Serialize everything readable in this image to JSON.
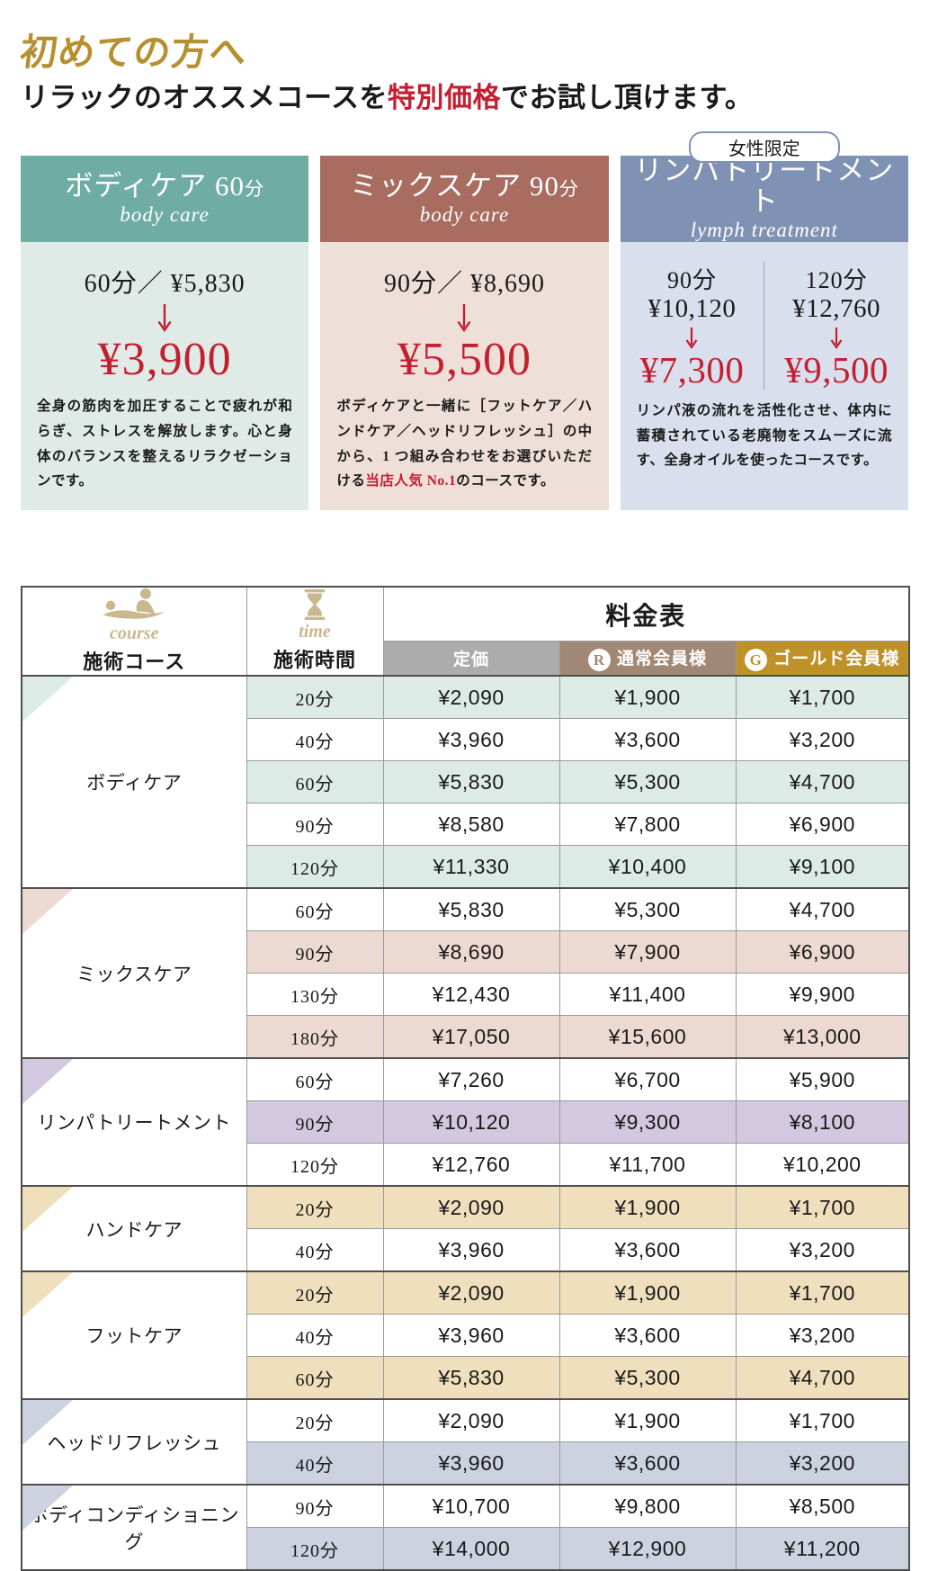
{
  "header": {
    "title": "初めての方へ",
    "subtitle": {
      "pre": "リラックのオススメコースを",
      "highlight": "特別価格",
      "post": "でお試し頂けます。"
    }
  },
  "colors": {
    "accent_red": "#c41f30",
    "title_gold": "#b6902e",
    "icon_tan": "#c9b78f"
  },
  "cards": [
    {
      "title": "ボディケア 60",
      "title_unit": "分",
      "subtitle_en": "body care",
      "orig_line": "60分／ ¥5,830",
      "price": "¥3,900",
      "desc": [
        {
          "text": "全身の筋肉を加圧することで疲れが和らぎ、ストレスを解放します。心と身体のバランスを整えるリラクゼーションです。",
          "red": false
        }
      ],
      "header_bg": "#6fada4",
      "body_bg": "#e0ebe8"
    },
    {
      "title": "ミックスケア 90",
      "title_unit": "分",
      "subtitle_en": "body care",
      "orig_line": "90分／ ¥8,690",
      "price": "¥5,500",
      "desc": [
        {
          "text": "ボディケアと一緒に［フットケア／ハンドケア／ヘッドリフレッシュ］の中から、1 つ組み合わせをお選びいただける",
          "red": false
        },
        {
          "text": "当店人気 No.1",
          "red": true
        },
        {
          "text": "のコースです。",
          "red": false
        }
      ],
      "header_bg": "#a86c60",
      "body_bg": "#eedfd8"
    },
    {
      "badge": "女性限定",
      "title": "リンパトリートメント",
      "title_unit": "",
      "subtitle_en": "lymph treatment",
      "offers": [
        {
          "duration": "90分",
          "orig": "¥10,120",
          "price": "¥7,300"
        },
        {
          "duration": "120分",
          "orig": "¥12,760",
          "price": "¥9,500"
        }
      ],
      "desc": [
        {
          "text": "リンパ液の流れを活性化させ、体内に蓄積されている老廃物をスムーズに流す、全身オイルを使ったコースです。",
          "red": false
        }
      ],
      "header_bg": "#8092b3",
      "body_bg": "#d9dfec"
    }
  ],
  "table": {
    "title": "料金表",
    "course_header": {
      "icon": "massage-icon",
      "caption": "course",
      "label": "施術コース"
    },
    "time_header": {
      "icon": "hourglass-icon",
      "caption": "time",
      "label": "施術時間"
    },
    "price_columns": [
      {
        "label": "定価",
        "bg": "#acacac",
        "logo": ""
      },
      {
        "label": "通常会員様",
        "bg": "#a18875",
        "logo": "R"
      },
      {
        "label": "ゴールド会員様",
        "bg": "#bf9129",
        "logo": "G"
      }
    ],
    "groups": [
      {
        "course": "ボディケア",
        "theme": "#dcebe6",
        "rows": [
          {
            "time": "20分",
            "prices": [
              "¥2,090",
              "¥1,900",
              "¥1,700"
            ]
          },
          {
            "time": "40分",
            "prices": [
              "¥3,960",
              "¥3,600",
              "¥3,200"
            ]
          },
          {
            "time": "60分",
            "prices": [
              "¥5,830",
              "¥5,300",
              "¥4,700"
            ]
          },
          {
            "time": "90分",
            "prices": [
              "¥8,580",
              "¥7,800",
              "¥6,900"
            ]
          },
          {
            "time": "120分",
            "prices": [
              "¥11,330",
              "¥10,400",
              "¥9,100"
            ]
          }
        ]
      },
      {
        "course": "ミックスケア",
        "theme": "#ecd9d1",
        "rows": [
          {
            "time": "60分",
            "prices": [
              "¥5,830",
              "¥5,300",
              "¥4,700"
            ]
          },
          {
            "time": "90分",
            "prices": [
              "¥8,690",
              "¥7,900",
              "¥6,900"
            ]
          },
          {
            "time": "130分",
            "prices": [
              "¥12,430",
              "¥11,400",
              "¥9,900"
            ]
          },
          {
            "time": "180分",
            "prices": [
              "¥17,050",
              "¥15,600",
              "¥13,000"
            ]
          }
        ]
      },
      {
        "course": "リンパトリートメント",
        "theme": "#d2c9e0",
        "rows": [
          {
            "time": "60分",
            "prices": [
              "¥7,260",
              "¥6,700",
              "¥5,900"
            ]
          },
          {
            "time": "90分",
            "prices": [
              "¥10,120",
              "¥9,300",
              "¥8,100"
            ]
          },
          {
            "time": "120分",
            "prices": [
              "¥12,760",
              "¥11,700",
              "¥10,200"
            ]
          }
        ]
      },
      {
        "course": "ハンドケア",
        "theme": "#f0dfbd",
        "rows": [
          {
            "time": "20分",
            "prices": [
              "¥2,090",
              "¥1,900",
              "¥1,700"
            ]
          },
          {
            "time": "40分",
            "prices": [
              "¥3,960",
              "¥3,600",
              "¥3,200"
            ]
          }
        ]
      },
      {
        "course": "フットケア",
        "theme": "#f0dfbd",
        "rows": [
          {
            "time": "20分",
            "prices": [
              "¥2,090",
              "¥1,900",
              "¥1,700"
            ]
          },
          {
            "time": "40分",
            "prices": [
              "¥3,960",
              "¥3,600",
              "¥3,200"
            ]
          },
          {
            "time": "60分",
            "prices": [
              "¥5,830",
              "¥5,300",
              "¥4,700"
            ]
          }
        ]
      },
      {
        "course": "ヘッドリフレッシュ",
        "theme": "#ccd2e0",
        "rows": [
          {
            "time": "20分",
            "prices": [
              "¥2,090",
              "¥1,900",
              "¥1,700"
            ]
          },
          {
            "time": "40分",
            "prices": [
              "¥3,960",
              "¥3,600",
              "¥3,200"
            ]
          }
        ]
      },
      {
        "course": "ボディコンディショニング",
        "theme": "#ccd2e0",
        "rows": [
          {
            "time": "90分",
            "prices": [
              "¥10,700",
              "¥9,800",
              "¥8,500"
            ]
          },
          {
            "time": "120分",
            "prices": [
              "¥14,000",
              "¥12,900",
              "¥11,200"
            ]
          }
        ]
      }
    ]
  }
}
